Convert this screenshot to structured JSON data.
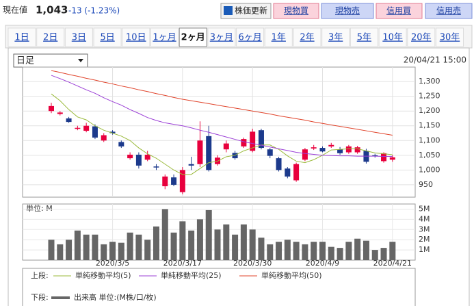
{
  "header": {
    "label": "現在値",
    "price": "1,043",
    "change": "-13 (-1.23%)",
    "buttons": [
      "株価更新",
      "現物買",
      "現物売",
      "信用買",
      "信用売"
    ]
  },
  "tabs": {
    "items": [
      "1日",
      "2日",
      "3日",
      "5日",
      "10日",
      "1ヶ月",
      "2ヶ月",
      "3ヶ月",
      "6ヶ月",
      "1年",
      "2年",
      "3年",
      "5年",
      "10年",
      "20年",
      "30年"
    ],
    "selected_index": 6
  },
  "panel": {
    "period_select": "日足",
    "timestamp": "20/04/21 15:00"
  },
  "chart_data": [
    {
      "type": "candlestick",
      "legend_label": "上段:",
      "up_color": "#e8003d",
      "down_color": "#1c3a8c",
      "open": [
        1200,
        1190,
        1175,
        1140,
        1133,
        1148,
        1100,
        1130,
        1095,
        1040,
        1052,
        1035,
        1012,
        945,
        975,
        925,
        1020,
        1020,
        1115,
        1020,
        1070,
        1058,
        1080,
        1065,
        1135,
        1070,
        1040,
        1005,
        965,
        1035,
        1073,
        1075,
        1080,
        1070,
        1060,
        1060,
        1065,
        1050,
        1030,
        1035
      ],
      "high": [
        1228,
        1200,
        1180,
        1150,
        1160,
        1155,
        1125,
        1135,
        1100,
        1060,
        1060,
        1065,
        1020,
        985,
        985,
        1010,
        1045,
        1165,
        1150,
        1050,
        1100,
        1065,
        1110,
        1140,
        1140,
        1075,
        1045,
        1010,
        1025,
        1075,
        1085,
        1080,
        1092,
        1078,
        1085,
        1082,
        1072,
        1055,
        1060,
        1050
      ],
      "low": [
        1193,
        1185,
        1160,
        1135,
        1128,
        1105,
        1095,
        1120,
        1075,
        1035,
        1005,
        1030,
        1000,
        935,
        945,
        918,
        1000,
        1010,
        995,
        1015,
        1060,
        1035,
        1075,
        1060,
        1070,
        1040,
        995,
        972,
        960,
        1030,
        1068,
        1060,
        1075,
        1052,
        1055,
        1055,
        1022,
        1042,
        1025,
        1028
      ],
      "close": [
        1217,
        1195,
        1163,
        1143,
        1150,
        1110,
        1118,
        1125,
        1080,
        1052,
        1015,
        1052,
        1010,
        978,
        950,
        1000,
        1015,
        1100,
        1000,
        1042,
        1090,
        1040,
        1105,
        1130,
        1075,
        1048,
        1000,
        978,
        1020,
        1070,
        1077,
        1063,
        1085,
        1057,
        1080,
        1077,
        1028,
        1047,
        1057,
        1043
      ],
      "series": [
        {
          "name": "単純移動平均(5)",
          "color": "#9aba3a",
          "values": [
            1258,
            1235,
            1205,
            1180,
            1170,
            1150,
            1135,
            1125,
            1115,
            1100,
            1075,
            1055,
            1040,
            1020,
            1000,
            985,
            985,
            1005,
            1025,
            1030,
            1045,
            1050,
            1065,
            1075,
            1085,
            1085,
            1070,
            1048,
            1030,
            1025,
            1035,
            1050,
            1068,
            1070,
            1072,
            1072,
            1065,
            1058,
            1055,
            1052
          ]
        },
        {
          "name": "単純移動平均(25)",
          "color": "#9b3fd6",
          "values": [
            1321,
            1310,
            1298,
            1285,
            1272,
            1260,
            1245,
            1232,
            1220,
            1205,
            1192,
            1178,
            1168,
            1160,
            1155,
            1150,
            1143,
            1135,
            1128,
            1120,
            1112,
            1104,
            1096,
            1090,
            1084,
            1078,
            1072,
            1066,
            1060,
            1056,
            1053,
            1050,
            1049,
            1048,
            1048,
            1047,
            1047,
            1047,
            1046,
            1046
          ]
        },
        {
          "name": "単純移動平均(50)",
          "color": "#e0432a",
          "values": [
            1337,
            1331,
            1324,
            1318,
            1311,
            1305,
            1298,
            1292,
            1285,
            1279,
            1272,
            1266,
            1259,
            1253,
            1246,
            1240,
            1235,
            1230,
            1225,
            1220,
            1215,
            1210,
            1205,
            1200,
            1195,
            1190,
            1184,
            1179,
            1174,
            1169,
            1163,
            1158,
            1153,
            1148,
            1143,
            1138,
            1133,
            1128,
            1123,
            1118
          ]
        }
      ],
      "ylim": [
        908,
        1349
      ],
      "yticks": [
        {
          "value": 950,
          "label": "950"
        },
        {
          "value": 1000,
          "label": "1,000"
        },
        {
          "value": 1050,
          "label": "1,050"
        },
        {
          "value": 1100,
          "label": "1,100"
        },
        {
          "value": 1150,
          "label": "1,150"
        },
        {
          "value": 1200,
          "label": "1,200"
        },
        {
          "value": 1250,
          "label": "1,250"
        },
        {
          "value": 1300,
          "label": "1,300"
        }
      ],
      "grid": true
    },
    {
      "type": "bar",
      "legend_label": "下段:",
      "unit_label": "単位: M",
      "name": "出来高 単位:(M株/口/枚)",
      "color": "#666666",
      "categories": [
        null,
        null,
        null,
        null,
        null,
        null,
        null,
        "2020/3/5",
        null,
        null,
        null,
        null,
        null,
        null,
        null,
        "2020/3/17",
        null,
        null,
        null,
        null,
        null,
        null,
        null,
        "2020/3/30",
        null,
        null,
        null,
        null,
        null,
        null,
        null,
        "2020/4/9",
        null,
        null,
        null,
        null,
        null,
        null,
        null,
        "2020/4/21"
      ],
      "values": [
        2.0,
        1.55,
        2.0,
        2.9,
        2.5,
        2.5,
        1.55,
        1.8,
        1.7,
        2.7,
        2.5,
        2.0,
        3.3,
        5.0,
        2.7,
        3.8,
        2.9,
        4.0,
        4.9,
        3.0,
        3.5,
        2.5,
        3.5,
        3.0,
        2.2,
        1.55,
        1.8,
        2.0,
        1.8,
        1.55,
        1.8,
        1.8,
        1.3,
        1.2,
        1.8,
        2.1,
        1.9,
        1.0,
        1.2,
        1.8
      ],
      "ylim": [
        0,
        5.5
      ],
      "yticks": [
        {
          "value": 1,
          "label": "1M"
        },
        {
          "value": 2,
          "label": "2M"
        },
        {
          "value": 3,
          "label": "3M"
        },
        {
          "value": 4,
          "label": "4M"
        },
        {
          "value": 5,
          "label": "5M"
        }
      ],
      "grid": true
    }
  ]
}
